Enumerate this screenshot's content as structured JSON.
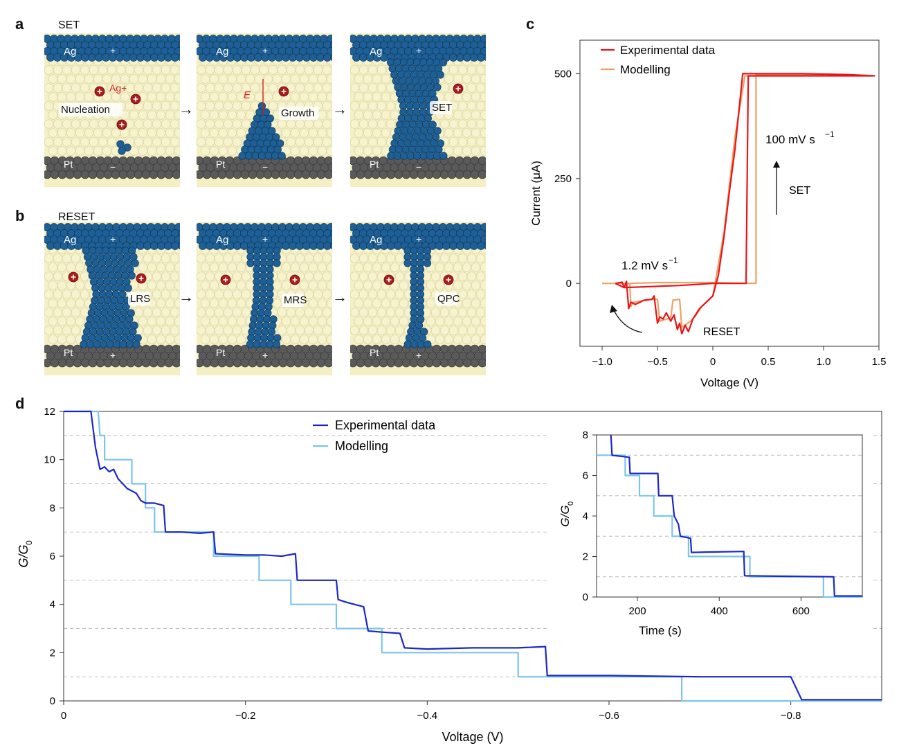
{
  "panels": {
    "a": {
      "letter": "a",
      "label": "SET"
    },
    "b": {
      "letter": "b",
      "label": "RESET"
    },
    "c": {
      "letter": "c"
    },
    "d": {
      "letter": "d"
    }
  },
  "diagram": {
    "top_electrode": "Ag",
    "bottom_electrode": "Pt",
    "plus": "+",
    "minus": "−",
    "ion_label": "Ag+",
    "field_label": "E",
    "set_stages": [
      "Nucleation",
      "Growth",
      "SET"
    ],
    "reset_stages": [
      "LRS",
      "MRS",
      "QPC"
    ],
    "arrow": "→"
  },
  "chart_data": [
    {
      "id": "c",
      "type": "line",
      "xlabel": "Voltage (V)",
      "ylabel": "Current (μA)",
      "xlim": [
        -1.2,
        1.5
      ],
      "ylim": [
        -150,
        580
      ],
      "xticks": [
        -1.0,
        -0.5,
        0,
        0.5,
        1.0,
        1.5
      ],
      "xtick_labels": [
        "−1.0",
        "−0.5",
        "0",
        "0.5",
        "1.0",
        "1.5"
      ],
      "yticks": [
        0,
        250,
        500
      ],
      "ytick_labels": [
        "0",
        "250",
        "500"
      ],
      "legend": [
        "Experimental data",
        "Modelling"
      ],
      "legend_position": "top-left",
      "annotations": {
        "sweep_fast": "100 mV s",
        "sweep_fast_exp": "−1",
        "set": "SET",
        "sweep_slow": "1.2 mV s",
        "sweep_slow_exp": "−1",
        "reset": "RESET"
      },
      "series": [
        {
          "name": "Modelling",
          "color": "#f0a060",
          "x": [
            -1.0,
            -0.75,
            -0.74,
            -0.72,
            -0.55,
            -0.5,
            -0.48,
            -0.38,
            -0.36,
            -0.3,
            -0.28,
            -0.2,
            -0.15,
            -0.1,
            0,
            0.1,
            0.2,
            0.29,
            0.4,
            0.8,
            1.0,
            1.0,
            0.39,
            0.39,
            0.0,
            -0.5,
            -0.75,
            -1.0
          ],
          "y": [
            0,
            0,
            -55,
            -45,
            -38,
            -38,
            -90,
            -82,
            -40,
            -38,
            -105,
            -90,
            -75,
            -55,
            -30,
            120,
            350,
            495,
            495,
            495,
            498,
            498,
            498,
            0,
            2,
            2,
            0,
            0
          ]
        },
        {
          "name": "Experimental data",
          "color": "#e8141a",
          "x": [
            -0.88,
            -0.82,
            -0.8,
            -0.78,
            -0.76,
            -0.74,
            -0.7,
            -0.62,
            -0.55,
            -0.53,
            -0.5,
            -0.48,
            -0.45,
            -0.42,
            -0.38,
            -0.35,
            -0.32,
            -0.3,
            -0.28,
            -0.25,
            -0.22,
            -0.18,
            -0.12,
            -0.06,
            0,
            0.05,
            0.1,
            0.15,
            0.2,
            0.27,
            0.35,
            0.8,
            1.2,
            1.46,
            1.46,
            0.4,
            0.36,
            0.32,
            0.3,
            0.1,
            0.0,
            -0.3,
            -0.6,
            -0.8,
            -0.88
          ],
          "y": [
            0,
            3,
            -10,
            5,
            -60,
            -45,
            -50,
            -40,
            -38,
            -30,
            -95,
            -80,
            -85,
            -70,
            -90,
            -75,
            -110,
            -95,
            -120,
            -100,
            -115,
            -85,
            -60,
            -45,
            -30,
            20,
            110,
            220,
            320,
            500,
            500,
            500,
            498,
            495,
            495,
            495,
            495,
            495,
            0,
            0,
            0,
            -5,
            -8,
            -10,
            0
          ]
        }
      ]
    },
    {
      "id": "d",
      "type": "line",
      "xlabel": "Voltage (V)",
      "ylabel": "G/G",
      "ylabel_sub": "0",
      "xlim": [
        0,
        -0.9
      ],
      "ylim": [
        0,
        12
      ],
      "xticks": [
        0,
        -0.2,
        -0.4,
        -0.6,
        -0.8
      ],
      "xtick_labels": [
        "0",
        "−0.2",
        "−0.4",
        "−0.6",
        "−0.8"
      ],
      "yticks": [
        0,
        2,
        4,
        6,
        8,
        10,
        12
      ],
      "ytick_labels": [
        "0",
        "2",
        "4",
        "6",
        "8",
        "10",
        "12"
      ],
      "dashed_grid_at": [
        1,
        3,
        5,
        7,
        9,
        11
      ],
      "legend": [
        "Experimental data",
        "Modelling"
      ],
      "legend_position": "top-center",
      "series": [
        {
          "name": "Modelling",
          "color": "#7cc4ee",
          "x": [
            0,
            -0.038,
            -0.04,
            -0.045,
            -0.045,
            -0.06,
            -0.075,
            -0.075,
            -0.09,
            -0.09,
            -0.1,
            -0.1,
            -0.165,
            -0.165,
            -0.215,
            -0.215,
            -0.25,
            -0.25,
            -0.3,
            -0.3,
            -0.35,
            -0.35,
            -0.5,
            -0.5,
            -0.68,
            -0.68,
            -0.9
          ],
          "y": [
            12,
            12,
            11,
            11,
            10,
            10,
            10,
            9,
            9,
            8,
            8,
            7,
            7,
            6,
            6,
            5,
            5,
            4,
            4,
            3,
            3,
            2,
            2,
            1,
            1,
            0,
            0
          ]
        },
        {
          "name": "Experimental data",
          "color": "#1a28c8",
          "x": [
            0,
            -0.03,
            -0.035,
            -0.04,
            -0.045,
            -0.05,
            -0.055,
            -0.06,
            -0.065,
            -0.07,
            -0.075,
            -0.08,
            -0.085,
            -0.09,
            -0.095,
            -0.1,
            -0.11,
            -0.112,
            -0.13,
            -0.15,
            -0.165,
            -0.167,
            -0.2,
            -0.22,
            -0.24,
            -0.255,
            -0.257,
            -0.28,
            -0.3,
            -0.302,
            -0.31,
            -0.32,
            -0.33,
            -0.335,
            -0.35,
            -0.37,
            -0.375,
            -0.4,
            -0.45,
            -0.5,
            -0.53,
            -0.532,
            -0.6,
            -0.7,
            -0.8,
            -0.812,
            -0.9
          ],
          "y": [
            12,
            12,
            10.5,
            9.6,
            9.7,
            9.5,
            9.6,
            9.2,
            9.0,
            8.8,
            8.7,
            8.6,
            8.3,
            8.2,
            8.2,
            8.2,
            8.1,
            7.0,
            7.0,
            6.95,
            7.0,
            6.1,
            6.05,
            6.05,
            6.0,
            6.1,
            5.0,
            5.0,
            5.0,
            4.2,
            4.1,
            4.0,
            3.9,
            2.9,
            2.85,
            2.8,
            2.2,
            2.15,
            2.2,
            2.2,
            2.25,
            1.05,
            1.05,
            1.0,
            1.0,
            0.05,
            0.05
          ]
        }
      ],
      "inset": {
        "type": "line",
        "xlabel": "Time (s)",
        "ylabel": "G/G",
        "ylabel_sub": "0",
        "xlim": [
          100,
          750
        ],
        "ylim": [
          0,
          8
        ],
        "xticks": [
          200,
          400,
          600
        ],
        "xtick_labels": [
          "200",
          "400",
          "600"
        ],
        "yticks": [
          0,
          2,
          4,
          6,
          8
        ],
        "ytick_labels": [
          "0",
          "2",
          "4",
          "6",
          "8"
        ],
        "dashed_grid_at": [
          1,
          3,
          5,
          7
        ],
        "series": [
          {
            "name": "Modelling",
            "color": "#7cc4ee",
            "x": [
              100,
              170,
              170,
              205,
              205,
              240,
              240,
              285,
              285,
              325,
              325,
              475,
              475,
              655,
              655,
              750
            ],
            "y": [
              7,
              7,
              6,
              6,
              5,
              5,
              4,
              4,
              3,
              3,
              2,
              2,
              1,
              1,
              0,
              0
            ]
          },
          {
            "name": "Experimental data",
            "color": "#1a28c8",
            "x": [
              135,
              138,
              180,
              182,
              250,
              252,
              285,
              290,
              300,
              305,
              330,
              332,
              460,
              462,
              680,
              682,
              750
            ],
            "y": [
              8,
              7.0,
              6.9,
              6.1,
              6.1,
              5.0,
              5.0,
              4.0,
              3.6,
              3.0,
              2.9,
              2.2,
              2.25,
              1.05,
              1.0,
              0.05,
              0.05
            ]
          }
        ]
      }
    }
  ]
}
